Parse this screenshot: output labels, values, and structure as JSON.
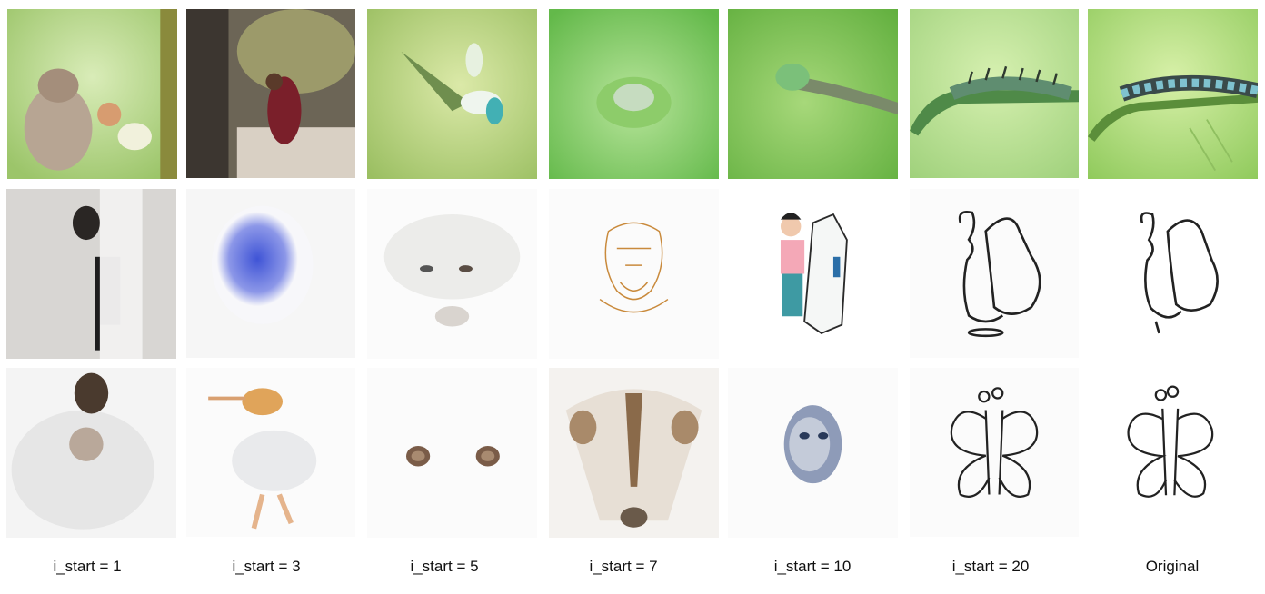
{
  "columns": [
    {
      "label": "i_start = 1"
    },
    {
      "label": "i_start = 3"
    },
    {
      "label": "i_start = 5"
    },
    {
      "label": "i_start = 7"
    },
    {
      "label": "i_start = 10"
    },
    {
      "label": "i_start = 20"
    },
    {
      "label": "Original"
    }
  ],
  "rows": [
    {
      "theme": "green-macro",
      "tiles": [
        "squirrel-in-grass",
        "woman-in-forest",
        "blurred-flower",
        "green-flower-bud",
        "caterpillar-on-stem",
        "caterpillar-on-stem-sharp",
        "caterpillar-on-stem-original"
      ]
    },
    {
      "theme": "sketch-a",
      "tiles": [
        "man-in-white",
        "blue-ink-blob",
        "fluffy-cat-face",
        "orange-line-sketch",
        "cartoon-girl-with-mirror",
        "butterfly-sketch-partial",
        "butterfly-sketch-partial-original"
      ]
    },
    {
      "theme": "sketch-b",
      "tiles": [
        "fluffy-white-dog",
        "dancing-figure",
        "two-brown-dots",
        "animal-face-closeup",
        "blue-ink-face",
        "butterfly-line-drawing",
        "butterfly-line-drawing-original"
      ]
    }
  ]
}
